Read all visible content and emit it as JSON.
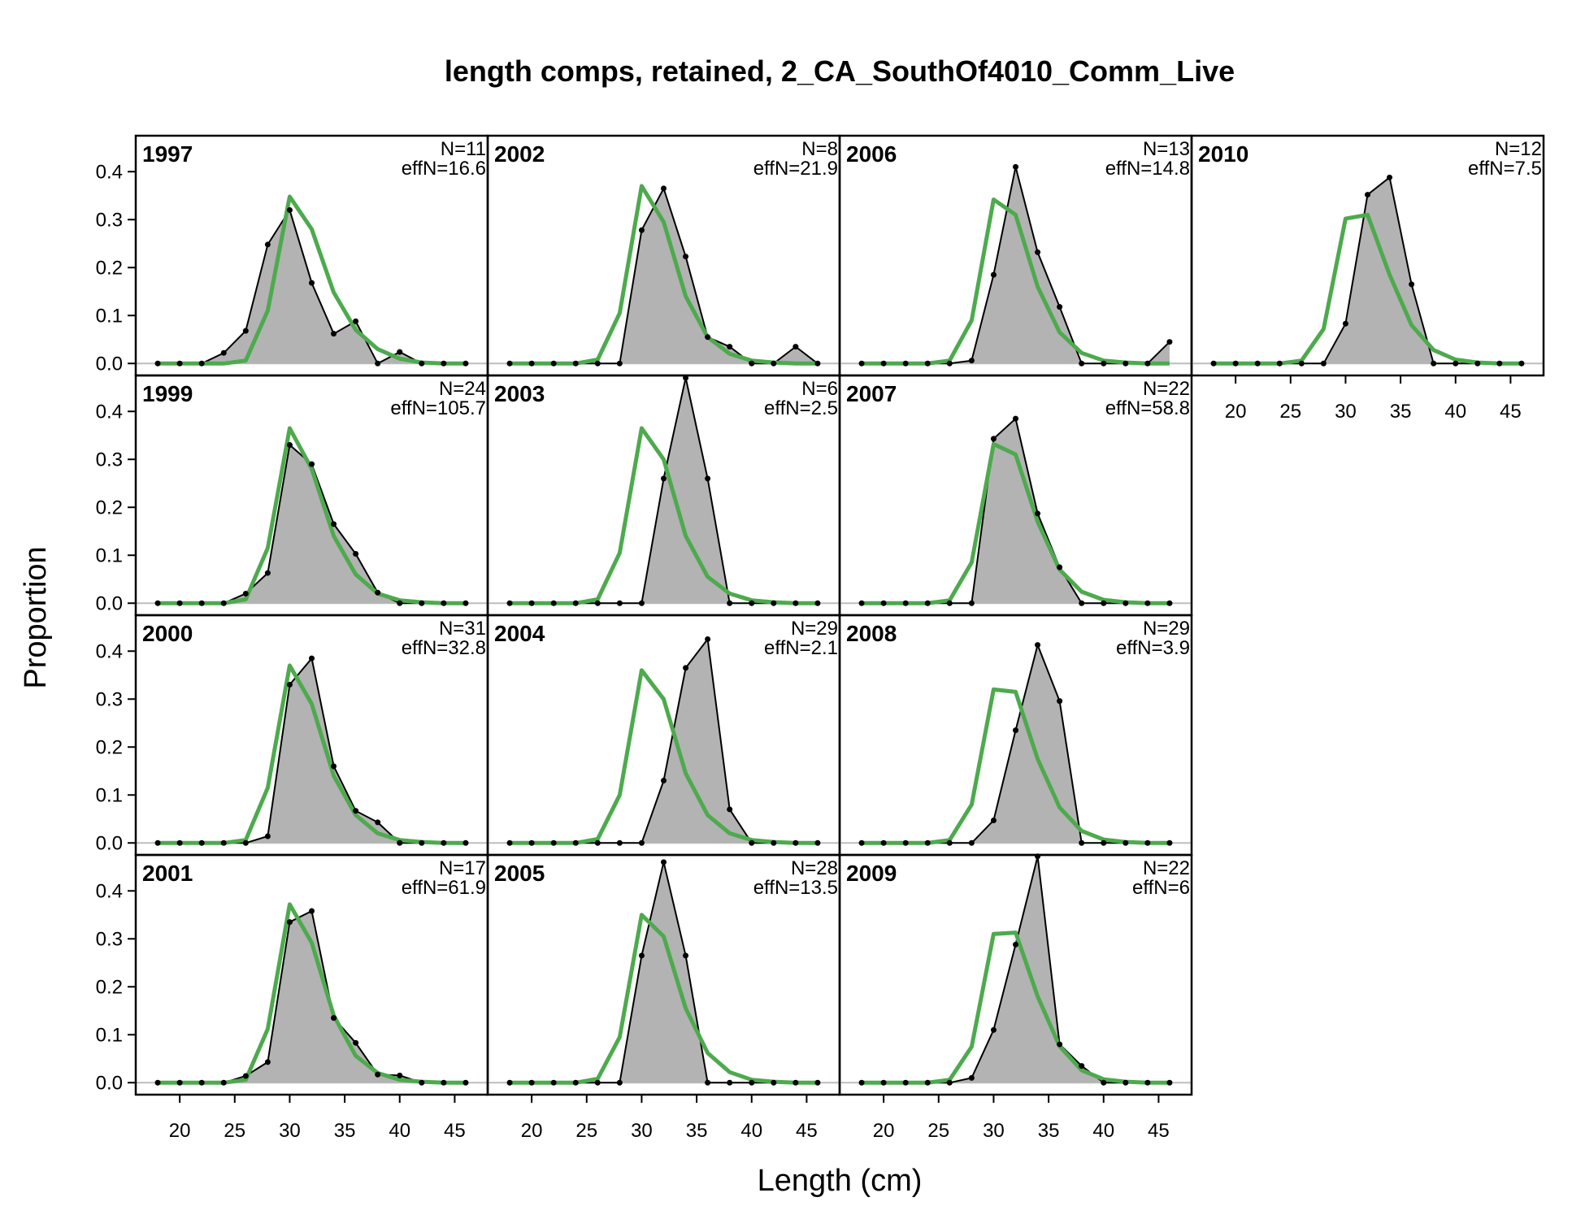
{
  "chart_data": {
    "type": "area",
    "title": "length comps, retained, 2_CA_SouthOf4010_Comm_Live",
    "xlabel": "Length (cm)",
    "ylabel": "Proportion",
    "xlim": [
      16,
      48
    ],
    "ylim": [
      -0.025,
      0.475
    ],
    "xticks": [
      20,
      25,
      30,
      35,
      40,
      45
    ],
    "yticks": [
      "0.0",
      "0.1",
      "0.2",
      "0.3",
      "0.4"
    ],
    "bins": [
      18,
      20,
      22,
      24,
      26,
      28,
      30,
      32,
      34,
      36,
      38,
      40,
      42,
      44,
      46
    ],
    "colors": {
      "observed_fill": "#b3b3b3",
      "observed_line": "#000000",
      "expected_line": "#4daa4d",
      "zero_line": "#bdbdbd"
    },
    "panels": [
      {
        "year": "1997",
        "n": "N=11",
        "effn": "effN=16.6",
        "observed": [
          0,
          0,
          0,
          0.022,
          0.068,
          0.248,
          0.32,
          0.168,
          0.062,
          0.088,
          0,
          0.024,
          0,
          0,
          0
        ],
        "expected": [
          0,
          0,
          0,
          0,
          0.006,
          0.11,
          0.348,
          0.28,
          0.148,
          0.07,
          0.03,
          0.01,
          0.002,
          0,
          0
        ]
      },
      {
        "year": "1999",
        "n": "N=24",
        "effn": "effN=105.7",
        "observed": [
          0,
          0,
          0,
          0,
          0.02,
          0.063,
          0.33,
          0.29,
          0.165,
          0.103,
          0.022,
          0,
          0,
          0,
          0
        ],
        "expected": [
          0,
          0,
          0,
          0,
          0.008,
          0.115,
          0.365,
          0.28,
          0.14,
          0.06,
          0.02,
          0.006,
          0.002,
          0,
          0
        ]
      },
      {
        "year": "2000",
        "n": "N=31",
        "effn": "effN=32.8",
        "observed": [
          0,
          0,
          0,
          0,
          0,
          0.014,
          0.33,
          0.385,
          0.16,
          0.067,
          0.043,
          0,
          0,
          0,
          0
        ],
        "expected": [
          0,
          0,
          0,
          0,
          0.006,
          0.115,
          0.37,
          0.29,
          0.14,
          0.058,
          0.02,
          0.006,
          0.002,
          0,
          0
        ]
      },
      {
        "year": "2001",
        "n": "N=17",
        "effn": "effN=61.9",
        "observed": [
          0,
          0,
          0,
          0,
          0.014,
          0.043,
          0.335,
          0.358,
          0.135,
          0.083,
          0.017,
          0.015,
          0,
          0,
          0
        ],
        "expected": [
          0,
          0,
          0,
          0,
          0.006,
          0.112,
          0.372,
          0.292,
          0.14,
          0.056,
          0.02,
          0.006,
          0.002,
          0,
          0
        ]
      },
      {
        "year": "2002",
        "n": "N=8",
        "effn": "effN=21.9",
        "observed": [
          0,
          0,
          0,
          0,
          0,
          0,
          0.278,
          0.365,
          0.223,
          0.055,
          0.035,
          0,
          0,
          0.035,
          0
        ],
        "expected": [
          0,
          0,
          0,
          0,
          0.008,
          0.105,
          0.37,
          0.295,
          0.14,
          0.055,
          0.02,
          0.006,
          0.002,
          0,
          0
        ]
      },
      {
        "year": "2003",
        "n": "N=6",
        "effn": "effN=2.5",
        "observed": [
          0,
          0,
          0,
          0,
          0,
          0,
          0,
          0.26,
          0.47,
          0.26,
          0,
          0,
          0,
          0,
          0
        ],
        "expected": [
          0,
          0,
          0,
          0,
          0.008,
          0.105,
          0.365,
          0.3,
          0.14,
          0.055,
          0.02,
          0.006,
          0.002,
          0,
          0
        ]
      },
      {
        "year": "2004",
        "n": "N=29",
        "effn": "effN=2.1",
        "observed": [
          0,
          0,
          0,
          0,
          0,
          0,
          0,
          0.13,
          0.365,
          0.425,
          0.07,
          0,
          0,
          0,
          0
        ],
        "expected": [
          0,
          0,
          0,
          0,
          0.008,
          0.1,
          0.36,
          0.3,
          0.145,
          0.058,
          0.02,
          0.006,
          0.002,
          0,
          0
        ]
      },
      {
        "year": "2005",
        "n": "N=28",
        "effn": "effN=13.5",
        "observed": [
          0,
          0,
          0,
          0,
          0,
          0,
          0.265,
          0.46,
          0.265,
          0,
          0,
          0,
          0,
          0,
          0
        ],
        "expected": [
          0,
          0,
          0,
          0,
          0.008,
          0.095,
          0.35,
          0.305,
          0.155,
          0.062,
          0.022,
          0.006,
          0.002,
          0,
          0
        ]
      },
      {
        "year": "2006",
        "n": "N=13",
        "effn": "effN=14.8",
        "observed": [
          0,
          0,
          0,
          0,
          0,
          0.006,
          0.185,
          0.41,
          0.232,
          0.118,
          0,
          0,
          0,
          0,
          0.045
        ],
        "expected": [
          0,
          0,
          0,
          0,
          0.006,
          0.09,
          0.342,
          0.31,
          0.16,
          0.065,
          0.022,
          0.006,
          0.002,
          0,
          0
        ]
      },
      {
        "year": "2007",
        "n": "N=22",
        "effn": "effN=58.8",
        "observed": [
          0,
          0,
          0,
          0,
          0,
          0,
          0.343,
          0.385,
          0.187,
          0.075,
          0,
          0,
          0,
          0,
          0
        ],
        "expected": [
          0,
          0,
          0,
          0,
          0.006,
          0.085,
          0.332,
          0.31,
          0.17,
          0.07,
          0.024,
          0.007,
          0.002,
          0,
          0
        ]
      },
      {
        "year": "2008",
        "n": "N=29",
        "effn": "effN=3.9",
        "observed": [
          0,
          0,
          0,
          0,
          0,
          0,
          0.047,
          0.235,
          0.413,
          0.296,
          0,
          0,
          0,
          0,
          0
        ],
        "expected": [
          0,
          0,
          0,
          0,
          0.006,
          0.08,
          0.32,
          0.315,
          0.175,
          0.074,
          0.025,
          0.007,
          0.002,
          0,
          0
        ]
      },
      {
        "year": "2009",
        "n": "N=22",
        "effn": "effN=6",
        "observed": [
          0,
          0,
          0,
          0,
          0,
          0.01,
          0.11,
          0.288,
          0.472,
          0.08,
          0.035,
          0,
          0,
          0,
          0
        ],
        "expected": [
          0,
          0,
          0,
          0,
          0.006,
          0.075,
          0.31,
          0.313,
          0.18,
          0.076,
          0.026,
          0.007,
          0.002,
          0,
          0
        ]
      },
      {
        "year": "2010",
        "n": "N=12",
        "effn": "effN=7.5",
        "observed": [
          0,
          0,
          0,
          0,
          0,
          0,
          0.083,
          0.352,
          0.388,
          0.165,
          0,
          0,
          0,
          0,
          0
        ],
        "expected": [
          0,
          0,
          0,
          0,
          0.006,
          0.072,
          0.302,
          0.31,
          0.185,
          0.08,
          0.028,
          0.008,
          0.002,
          0,
          0
        ]
      }
    ]
  }
}
